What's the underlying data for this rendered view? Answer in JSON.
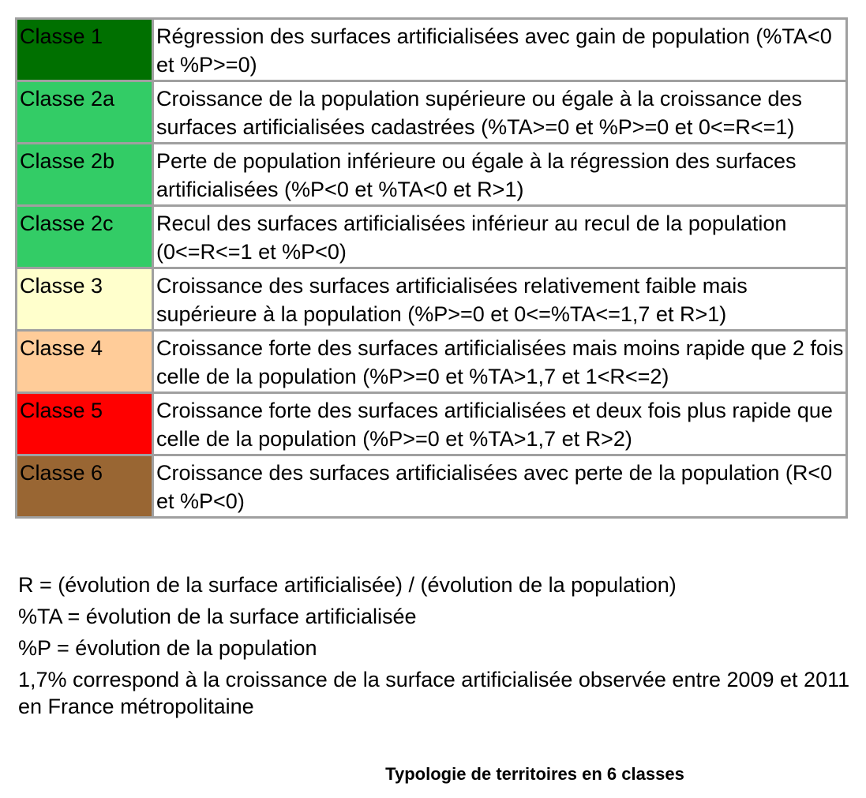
{
  "legend": {
    "rows": [
      {
        "label": "Classe 1",
        "color": "#007000",
        "description": "Régression des surfaces artificialisées avec gain de population (%TA<0 et %P>=0)"
      },
      {
        "label": "Classe 2a",
        "color": "#33cc66",
        "description": "Croissance de la population supérieure ou égale à la croissance des surfaces artificialisées cadastrées (%TA>=0 et %P>=0 et 0<=R<=1)"
      },
      {
        "label": "Classe 2b",
        "color": "#33cc66",
        "description": "Perte de population inférieure ou égale à la régression des surfaces artificialisées (%P<0 et %TA<0 et R>1)"
      },
      {
        "label": "Classe 2c",
        "color": "#33cc66",
        "description": "Recul des surfaces artificialisées inférieur au recul de la population (0<=R<=1 et %P<0)"
      },
      {
        "label": "Classe 3",
        "color": "#ffffcc",
        "description": "Croissance des surfaces artificialisées relativement faible mais supérieure à la population (%P>=0 et 0<=%TA<=1,7 et R>1)"
      },
      {
        "label": "Classe 4",
        "color": "#ffcc99",
        "description": "Croissance forte des surfaces artificialisées mais moins rapide que 2 fois celle de la population (%P>=0 et %TA>1,7 et 1<R<=2)"
      },
      {
        "label": "Classe 5",
        "color": "#ff0000",
        "description": "Croissance forte des surfaces artificialisées et deux fois plus rapide que celle de la population (%P>=0 et %TA>1,7 et R>2)"
      },
      {
        "label": "Classe 6",
        "color": "#996633",
        "description": "Croissance des surfaces artificialisées avec perte de la population (R<0 et %P<0)"
      }
    ]
  },
  "notes": {
    "r_definition": "R = (évolution de la surface artificialisée) / (évolution de la population)",
    "ta_definition": "%TA = évolution de la surface artificialisée",
    "p_definition": "%P = évolution de la population",
    "threshold_note": "1,7% correspond à la croissance de la surface artificialisée observée entre 2009 et 2011 en France métropolitaine"
  },
  "caption": "Typologie de territoires en 6 classes"
}
